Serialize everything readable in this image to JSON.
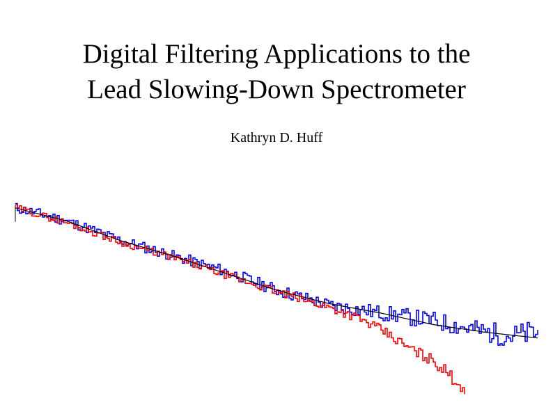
{
  "paper": {
    "title_line1": "Digital Filtering Applications to the",
    "title_line2": "Lead Slowing-Down Spectrometer",
    "author": "Kathryn D. Huff"
  },
  "chart_data": {
    "type": "line",
    "title": "",
    "xlabel": "",
    "ylabel": "",
    "axes_visible": false,
    "grid": false,
    "x_range": [
      0,
      1
    ],
    "y_range": [
      0,
      1
    ],
    "series": [
      {
        "name": "blue",
        "color": "#0000ff",
        "style": "step",
        "noise": 0.028,
        "seed": 11,
        "x": [
          0.0,
          0.1,
          0.2,
          0.3,
          0.4,
          0.5,
          0.6,
          0.7,
          0.8,
          0.9,
          0.95,
          1.0
        ],
        "y": [
          0.95,
          0.88,
          0.78,
          0.7,
          0.62,
          0.52,
          0.44,
          0.4,
          0.36,
          0.3,
          0.28,
          0.3
        ]
      },
      {
        "name": "red",
        "color": "#ff0000",
        "style": "step",
        "noise": 0.018,
        "seed": 29,
        "x": [
          0.0,
          0.1,
          0.2,
          0.3,
          0.4,
          0.5,
          0.6,
          0.65,
          0.7,
          0.75,
          0.8,
          0.84,
          0.86
        ],
        "y": [
          0.95,
          0.87,
          0.77,
          0.69,
          0.6,
          0.51,
          0.43,
          0.38,
          0.31,
          0.22,
          0.15,
          0.05,
          0.0
        ]
      },
      {
        "name": "black",
        "color": "#000000",
        "style": "line",
        "noise": 0,
        "seed": 0,
        "x": [
          0.0,
          0.1,
          0.2,
          0.3,
          0.4,
          0.5,
          0.6,
          0.7,
          0.8,
          0.9,
          1.0
        ],
        "y": [
          0.95,
          0.88,
          0.78,
          0.7,
          0.61,
          0.52,
          0.45,
          0.4,
          0.34,
          0.3,
          0.27
        ]
      }
    ]
  }
}
